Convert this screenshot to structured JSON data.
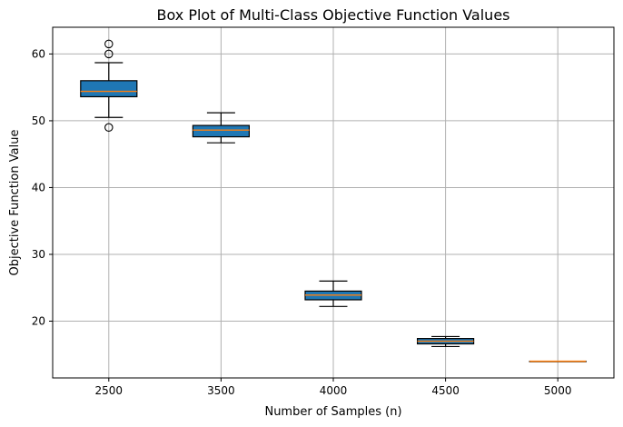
{
  "chart_data": {
    "type": "box",
    "title": "Box Plot of Multi-Class Objective Function Values",
    "xlabel": "Number of Samples (n)",
    "ylabel": "Objective Function Value",
    "categories": [
      "2500",
      "3500",
      "4000",
      "4500",
      "5000"
    ],
    "ylim": [
      11.5,
      64
    ],
    "yticks": [
      20,
      30,
      40,
      50,
      60
    ],
    "grid": true,
    "box_color": "#1f77b4",
    "median_color": "#ff7f0e",
    "boxes": [
      {
        "label": "2500",
        "whisker_low": 50.5,
        "q1": 53.6,
        "median": 54.4,
        "q3": 56.0,
        "whisker_high": 58.7,
        "outliers": [
          49.0,
          60.0,
          61.5
        ]
      },
      {
        "label": "3500",
        "whisker_low": 46.7,
        "q1": 47.6,
        "median": 48.6,
        "q3": 49.3,
        "whisker_high": 51.2,
        "outliers": []
      },
      {
        "label": "4000",
        "whisker_low": 22.2,
        "q1": 23.2,
        "median": 23.9,
        "q3": 24.5,
        "whisker_high": 26.0,
        "outliers": []
      },
      {
        "label": "4500",
        "whisker_low": 16.2,
        "q1": 16.6,
        "median": 17.0,
        "q3": 17.4,
        "whisker_high": 17.7,
        "outliers": []
      },
      {
        "label": "5000",
        "whisker_low": 14.0,
        "q1": 14.0,
        "median": 14.0,
        "q3": 14.0,
        "whisker_high": 14.0,
        "outliers": []
      }
    ]
  }
}
